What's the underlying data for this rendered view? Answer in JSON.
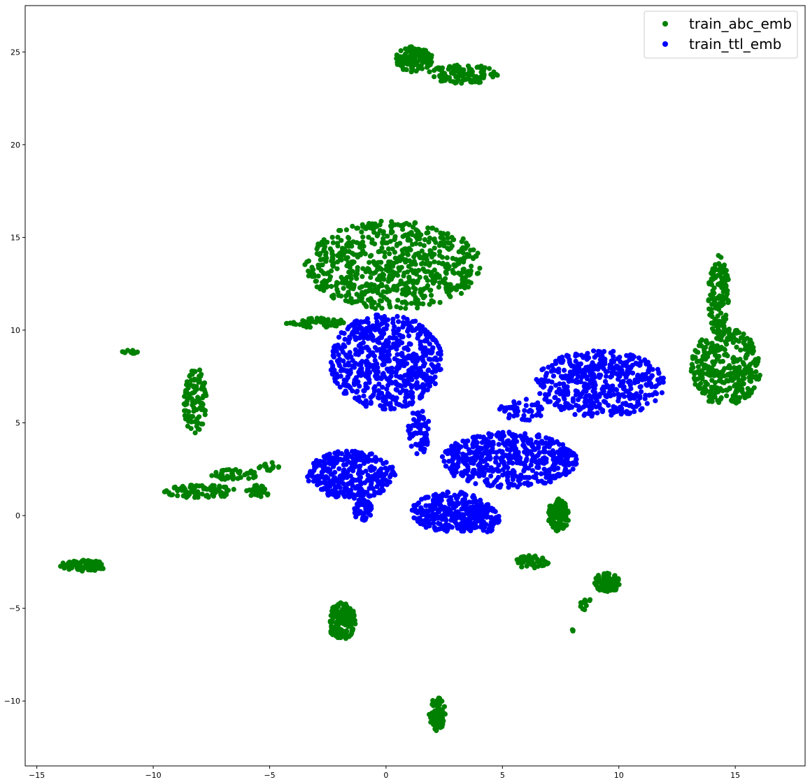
{
  "chart_data": {
    "type": "scatter",
    "title": "",
    "xlabel": "",
    "ylabel": "",
    "xlim": [
      -15.5,
      18.0
    ],
    "ylim": [
      -13.5,
      27.5
    ],
    "x_ticks": [
      -15,
      -10,
      -5,
      0,
      5,
      10,
      15
    ],
    "y_ticks": [
      -10,
      -5,
      0,
      5,
      10,
      15,
      20,
      25
    ],
    "x_tick_labels": [
      "−15",
      "−10",
      "−5",
      "0",
      "5",
      "10",
      "15"
    ],
    "y_tick_labels": [
      "−10",
      "−5",
      "0",
      "5",
      "10",
      "15",
      "20",
      "25"
    ],
    "grid": false,
    "legend": {
      "position": "top-right",
      "entries": [
        {
          "label": "train_abc_emb",
          "color": "#008000"
        },
        {
          "label": "train_ttl_emb",
          "color": "#0000ff"
        }
      ]
    },
    "series": [
      {
        "name": "train_abc_emb",
        "color": "#008000",
        "clusters": [
          {
            "cx": 0.3,
            "cy": 13.5,
            "rx": 3.8,
            "ry": 2.4,
            "n": 700
          },
          {
            "cx": 3.3,
            "cy": 23.8,
            "rx": 1.6,
            "ry": 0.5,
            "n": 110
          },
          {
            "cx": 1.2,
            "cy": 24.6,
            "rx": 0.8,
            "ry": 0.7,
            "n": 130
          },
          {
            "cx": 14.3,
            "cy": 11.8,
            "rx": 0.45,
            "ry": 2.3,
            "n": 140
          },
          {
            "cx": 14.6,
            "cy": 8.0,
            "rx": 1.5,
            "ry": 2.1,
            "n": 330
          },
          {
            "cx": -8.2,
            "cy": 6.2,
            "rx": 0.5,
            "ry": 1.8,
            "n": 110
          },
          {
            "cx": -11.0,
            "cy": 8.8,
            "rx": 0.35,
            "ry": 0.12,
            "n": 15
          },
          {
            "cx": -8.0,
            "cy": 1.3,
            "rx": 1.6,
            "ry": 0.35,
            "n": 85
          },
          {
            "cx": -6.5,
            "cy": 2.2,
            "rx": 1.0,
            "ry": 0.3,
            "n": 45
          },
          {
            "cx": -5.5,
            "cy": 1.3,
            "rx": 0.5,
            "ry": 0.35,
            "n": 25
          },
          {
            "cx": -5.0,
            "cy": 2.7,
            "rx": 0.5,
            "ry": 0.3,
            "n": 15
          },
          {
            "cx": -3.0,
            "cy": 10.4,
            "rx": 1.3,
            "ry": 0.25,
            "n": 55
          },
          {
            "cx": -13.0,
            "cy": -2.7,
            "rx": 1.0,
            "ry": 0.3,
            "n": 90
          },
          {
            "cx": -1.9,
            "cy": -5.7,
            "rx": 0.6,
            "ry": 1.0,
            "n": 170
          },
          {
            "cx": 2.2,
            "cy": -10.7,
            "rx": 0.35,
            "ry": 0.9,
            "n": 90
          },
          {
            "cx": 7.4,
            "cy": 0.0,
            "rx": 0.45,
            "ry": 0.9,
            "n": 110
          },
          {
            "cx": 6.3,
            "cy": -2.5,
            "rx": 0.8,
            "ry": 0.35,
            "n": 45
          },
          {
            "cx": 9.5,
            "cy": -3.6,
            "rx": 0.55,
            "ry": 0.55,
            "n": 90
          },
          {
            "cx": 8.6,
            "cy": -4.8,
            "rx": 0.25,
            "ry": 0.35,
            "n": 12
          },
          {
            "cx": 8.0,
            "cy": -6.2,
            "rx": 0.05,
            "ry": 0.05,
            "n": 4
          }
        ]
      },
      {
        "name": "train_ttl_emb",
        "color": "#0000ff",
        "clusters": [
          {
            "cx": 0.0,
            "cy": 8.3,
            "rx": 2.4,
            "ry": 2.6,
            "n": 620
          },
          {
            "cx": 9.2,
            "cy": 7.1,
            "rx": 2.8,
            "ry": 1.8,
            "n": 480
          },
          {
            "cx": 5.8,
            "cy": 5.7,
            "rx": 1.0,
            "ry": 0.6,
            "n": 45
          },
          {
            "cx": 1.4,
            "cy": 4.5,
            "rx": 0.5,
            "ry": 1.2,
            "n": 70
          },
          {
            "cx": -1.5,
            "cy": 2.2,
            "rx": 1.9,
            "ry": 1.3,
            "n": 320
          },
          {
            "cx": 5.3,
            "cy": 3.0,
            "rx": 2.9,
            "ry": 1.5,
            "n": 520
          },
          {
            "cx": 2.8,
            "cy": 0.2,
            "rx": 1.7,
            "ry": 1.1,
            "n": 280
          },
          {
            "cx": 4.0,
            "cy": -0.2,
            "rx": 0.9,
            "ry": 0.8,
            "n": 90
          },
          {
            "cx": -1.0,
            "cy": 0.3,
            "rx": 0.4,
            "ry": 0.6,
            "n": 55
          }
        ]
      }
    ]
  }
}
